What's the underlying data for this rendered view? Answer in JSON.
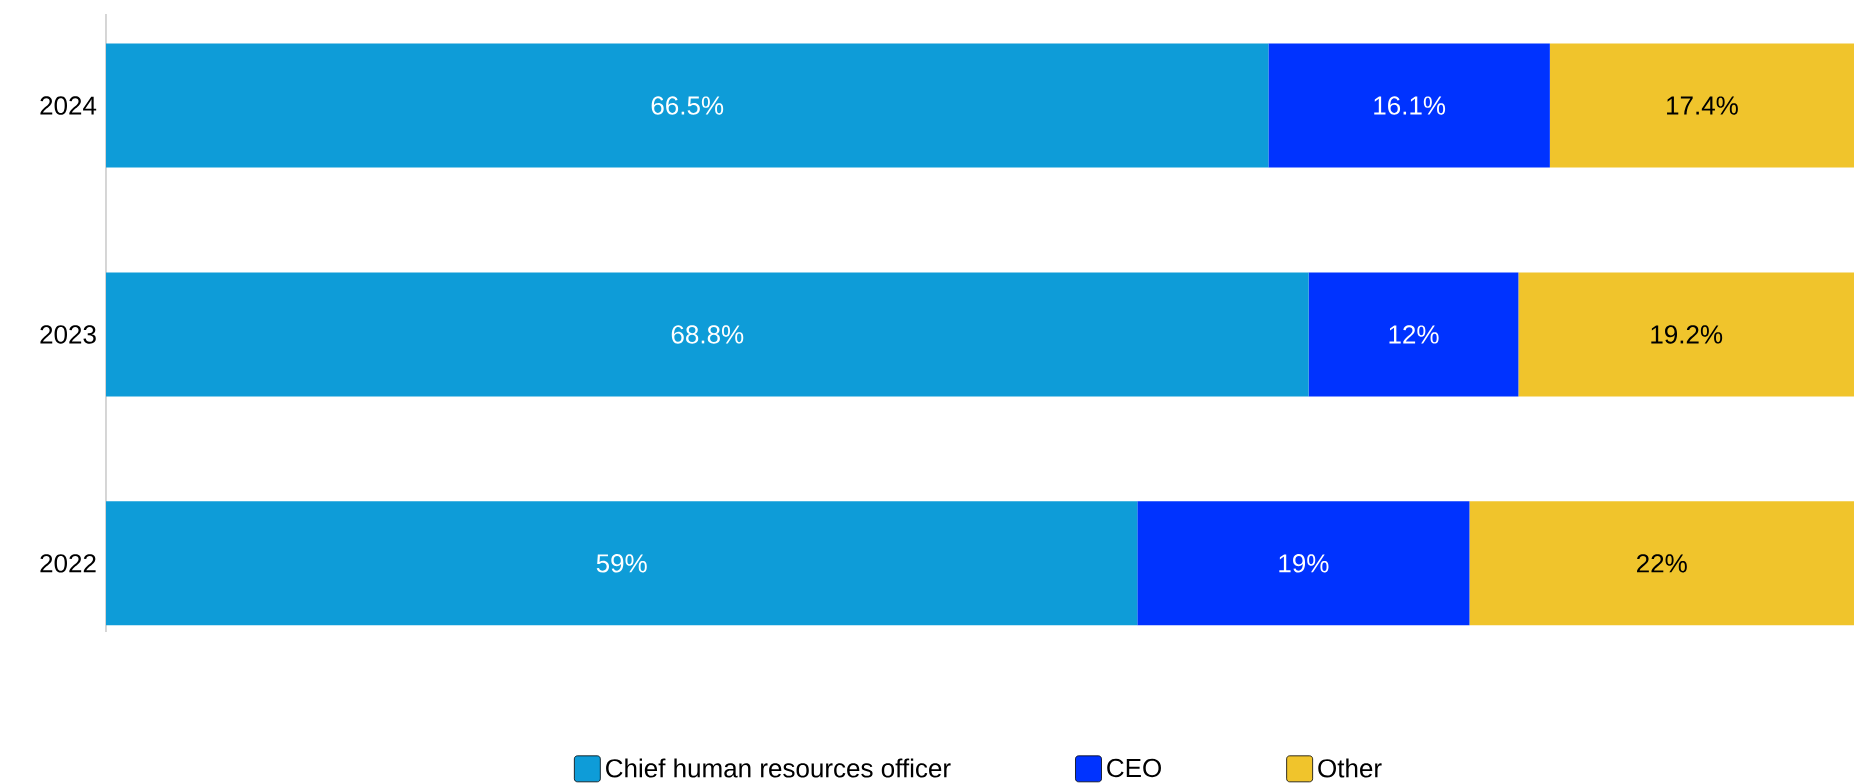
{
  "chart_data": {
    "type": "bar",
    "orientation": "horizontal",
    "stacked": true,
    "categories": [
      "2024",
      "2023",
      "2022"
    ],
    "series": [
      {
        "name": "Chief human resources officer",
        "color": "#0e9cd8",
        "values": [
          66.5,
          68.8,
          59
        ],
        "value_labels": [
          "66.5%",
          "68.8%",
          "59%"
        ]
      },
      {
        "name": "CEO",
        "color": "#0033ff",
        "values": [
          16.1,
          12,
          19
        ],
        "value_labels": [
          "16.1%",
          "12%",
          "19%"
        ]
      },
      {
        "name": "Other",
        "color": "#f0c42c",
        "values": [
          17.4,
          19.2,
          22
        ],
        "value_labels": [
          "17.4%",
          "19.2%",
          "22%"
        ]
      }
    ],
    "xlim": [
      0,
      100
    ],
    "tick_labels": "y",
    "legend": "bottom"
  }
}
